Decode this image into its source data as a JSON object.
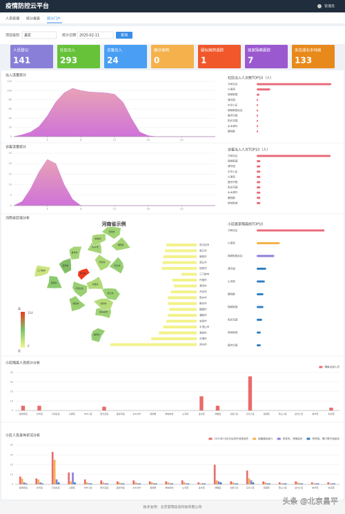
{
  "header": {
    "title": "疫情防控云平台",
    "user": "管理员"
  },
  "tabs": [
    "人员管理",
    "统计报表",
    "统计门户"
  ],
  "filters": {
    "level_label": "项目级别",
    "level_value": "县区",
    "date_label": "统计日期",
    "date_value": "2020-02-11",
    "button": "查询"
  },
  "cards": [
    {
      "label": "人员登记",
      "value": 141,
      "color": "#8a7fd8"
    },
    {
      "label": "社区出入",
      "value": 293,
      "color": "#67c23a"
    },
    {
      "label": "访客出入",
      "value": 24,
      "color": "#4a9ff5"
    },
    {
      "label": "确诊病例",
      "value": 0,
      "color": "#f5b14c"
    },
    {
      "label": "疑似病例追踪",
      "value": 1,
      "color": "#f0582b"
    },
    {
      "label": "居家隔离跟踪",
      "value": 7,
      "color": "#9b59d0"
    },
    {
      "label": "来自湖北本地居",
      "value": 133,
      "color": "#e8891b"
    }
  ],
  "chart_data": [
    {
      "type": "area",
      "title": "出入流量统计",
      "color": "#e8a2b6",
      "color2": "#cf73d8",
      "x": [
        0,
        1,
        2,
        3,
        4,
        5,
        6,
        7,
        8,
        9,
        10,
        11,
        12,
        13,
        14,
        15,
        16,
        17,
        18,
        19,
        20,
        21,
        22,
        23,
        24
      ],
      "values": [
        0,
        4,
        10,
        22,
        45,
        75,
        95,
        105,
        100,
        97,
        96,
        95,
        92,
        75,
        40,
        10,
        2,
        0,
        0,
        0,
        0,
        0,
        0,
        0,
        0
      ],
      "xlim": [
        0,
        24
      ],
      "xticks": [
        4,
        8,
        12,
        16,
        20
      ],
      "ylim": [
        0,
        120
      ],
      "yticks": [
        0,
        20,
        40,
        60,
        80,
        100,
        120
      ]
    },
    {
      "type": "hbar",
      "title": "社区出入人次数TOP10（人）",
      "color": "#e96b78",
      "categories": [
        "万和社区",
        "兴惠苑",
        "锦绣家园",
        "清华园",
        "丰华小区",
        "锦绣家园北区",
        "盛世华庭",
        "阳光花园",
        "水木清华",
        "康桥郡"
      ],
      "values": [
        110,
        20,
        4,
        2,
        2,
        2,
        2,
        2,
        2,
        2
      ],
      "xlim": [
        0,
        120
      ]
    },
    {
      "type": "area",
      "title": "访客流量统计",
      "color": "#e8a2b6",
      "color2": "#cf73d8",
      "x": [
        0,
        1,
        2,
        3,
        4,
        5,
        6,
        7,
        8,
        9,
        10,
        11,
        12,
        13,
        14,
        15,
        16,
        17,
        18,
        19,
        20,
        21,
        22,
        23,
        24
      ],
      "values": [
        0,
        2,
        8,
        16,
        22,
        20,
        10,
        3,
        0,
        0,
        0,
        0,
        0,
        0,
        0,
        0,
        0,
        0,
        0,
        0,
        0,
        0,
        0,
        0,
        0
      ],
      "xlim": [
        0,
        24
      ],
      "xticks": [
        4,
        8,
        12,
        16,
        20
      ],
      "ylim": [
        0,
        25
      ],
      "yticks": [
        0,
        5,
        10,
        15,
        20,
        25
      ]
    },
    {
      "type": "hbar",
      "title": "访客出入人次TOP10（人）",
      "color": "#e96b78",
      "categories": [
        "万和社区",
        "锦绣家园",
        "清华园",
        "丰华小区",
        "兴惠苑",
        "盛世华庭",
        "阳光花园",
        "水木清华",
        "康桥郡",
        "绿地新城"
      ],
      "values": [
        20,
        1,
        1,
        1,
        1,
        1,
        1,
        1,
        1,
        1
      ],
      "xlim": [
        0,
        22
      ]
    },
    {
      "type": "map",
      "section": "河南省区域分析",
      "title": "河南省示例",
      "bar_color": "#f2f28a",
      "visual_map": {
        "min": 0,
        "max": 114,
        "high": "高",
        "low": "低"
      },
      "categories": [
        "驻马店市",
        "周口市",
        "南阳市",
        "商丘市",
        "信阳市",
        "三门峡市",
        "许昌市",
        "漯河市",
        "开封市",
        "新乡市",
        "焦作市",
        "鹤壁市",
        "濮阳市",
        "安阳市",
        "平顶山市",
        "洛阳市",
        "济源市",
        "郑州市"
      ],
      "values": [
        40,
        42,
        44,
        45,
        46,
        20,
        32,
        30,
        34,
        38,
        38,
        36,
        38,
        40,
        44,
        50,
        60,
        114
      ]
    },
    {
      "type": "hbar",
      "title": "小区居家隔离前TOP10",
      "categories": [
        "万和社区",
        "兴惠苑",
        "锦绣家园北区",
        "清华园",
        "山河苑",
        "康桥郡",
        "锦绣家园",
        "阳光花园",
        "绿地新城",
        "盛世华庭"
      ],
      "values": [
        50,
        17,
        13,
        7,
        6,
        5,
        5,
        4,
        3,
        3
      ],
      "colors": [
        "#e96b78",
        "#f5b14c",
        "#8a7fd8",
        "#2f7fc1",
        "#2f7fc1",
        "#2f7fc1",
        "#2f7fc1",
        "#2f7fc1",
        "#2f7fc1",
        "#2f7fc1"
      ],
      "xlim": [
        0,
        60
      ]
    },
    {
      "type": "bar",
      "title": "小区隔离人员统计分析",
      "categories": [
        "锦绣家园",
        "清华园",
        "万和社区",
        "兴惠苑",
        "丰华小区",
        "阳光花园",
        "盛世华庭",
        "水木清华",
        "康桥郡",
        "绿地新城",
        "山河苑",
        "金水苑",
        "博雅园",
        "北辰小区",
        "东风小区",
        "西湖苑",
        "南山小区",
        "晨光小区",
        "春华苑",
        "秋实苑"
      ],
      "series": [
        {
          "name": "隔离出境人员",
          "color": "#e96b6b",
          "values": [
            5,
            5,
            0,
            0,
            0,
            4,
            0,
            0,
            0,
            0,
            0,
            15,
            5,
            0,
            36,
            0,
            0,
            0,
            0,
            3
          ]
        }
      ],
      "ylim": [
        0,
        40
      ],
      "yticks": [
        0,
        10,
        20,
        30,
        40
      ]
    },
    {
      "type": "bar",
      "title": "小区人员身体状况分析",
      "categories": [
        "锦绣家园",
        "清华园",
        "万和社区",
        "兴惠苑",
        "丰华小区",
        "阳光花园",
        "盛世华庭",
        "水木清华",
        "康桥郡",
        "绿地新城",
        "山河苑",
        "金水苑",
        "博雅园",
        "北辰小区",
        "东风小区",
        "西湖苑",
        "南山小区",
        "晨光小区",
        "春华苑",
        "秋实苑"
      ],
      "series": [
        {
          "name": "2020年1月8日后有外地旅游史",
          "color": "#e96b6b",
          "values": [
            8,
            6,
            33,
            12,
            5,
            4,
            3,
            4,
            3,
            3,
            4,
            2,
            20,
            3,
            14,
            3,
            2,
            3,
            2,
            2
          ]
        },
        {
          "name": "接触疑似病人",
          "color": "#f5b14c",
          "values": [
            6,
            5,
            25,
            3,
            2,
            2,
            2,
            2,
            2,
            2,
            2,
            1,
            4,
            2,
            6,
            2,
            1,
            2,
            1,
            1
          ]
        },
        {
          "name": "有发热、咳嗽症状",
          "color": "#8a7fd8",
          "values": [
            2,
            2,
            5,
            12,
            1,
            1,
            1,
            1,
            1,
            1,
            1,
            1,
            3,
            1,
            4,
            1,
            1,
            1,
            1,
            1
          ]
        },
        {
          "name": "有呼吸、胃口等不适症状",
          "color": "#2f7fc1",
          "values": [
            1,
            1,
            2,
            2,
            1,
            1,
            1,
            1,
            1,
            1,
            1,
            1,
            2,
            1,
            2,
            1,
            1,
            1,
            1,
            1
          ]
        }
      ],
      "ylim": [
        0,
        40
      ],
      "yticks": [
        0,
        10,
        20,
        30,
        40
      ]
    }
  ],
  "footer": "技术支持：北京慧明信息科技有限公司",
  "watermark": "头条 @北京昌平"
}
